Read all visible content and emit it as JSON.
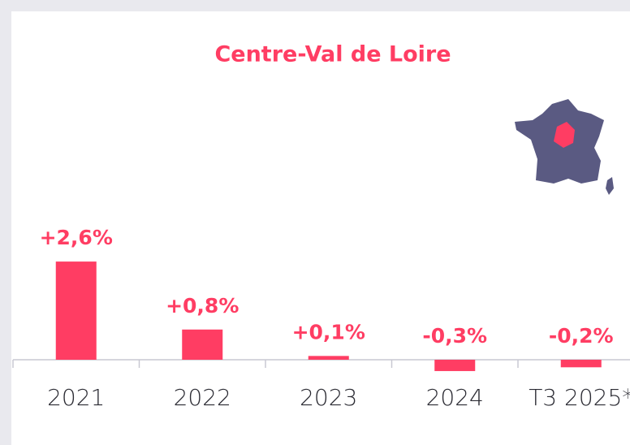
{
  "chart_data": {
    "type": "bar",
    "title": "Centre-Val de Loire",
    "categories": [
      "2021",
      "2022",
      "2023",
      "2024",
      "T3 2025*"
    ],
    "values": [
      2.6,
      0.8,
      0.1,
      -0.3,
      -0.2
    ],
    "value_labels": [
      "+2,6%",
      "+0,8%",
      "+0,1%",
      "-0,3%",
      "-0,2%"
    ],
    "color": "#ff3d63"
  }
}
